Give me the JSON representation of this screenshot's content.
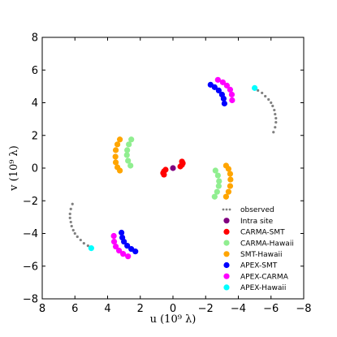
{
  "chart_data": {
    "type": "scatter",
    "xlabel": "u (10⁹ λ)",
    "ylabel": "v (10⁹ λ)",
    "xlim": [
      8,
      -8
    ],
    "ylim": [
      -8,
      8
    ],
    "xticks": [
      "8",
      "6",
      "4",
      "2",
      "0",
      "−2",
      "−4",
      "−6",
      "−8"
    ],
    "yticks": [
      "8",
      "6",
      "4",
      "2",
      "0",
      "−2",
      "−4",
      "−6",
      "−8"
    ],
    "grid": false,
    "legend_position": "bottom-right",
    "series": [
      {
        "name": "observed",
        "color": "#808080",
        "marker": "small-dot",
        "points": [
          [
            -5.2,
            4.75
          ],
          [
            -5.45,
            4.6
          ],
          [
            -5.65,
            4.4
          ],
          [
            -5.85,
            4.2
          ],
          [
            -6.0,
            4.0
          ],
          [
            -6.1,
            3.8
          ],
          [
            -6.2,
            3.55
          ],
          [
            -6.25,
            3.3
          ],
          [
            -6.3,
            3.05
          ],
          [
            -6.3,
            2.8
          ],
          [
            -6.25,
            2.5
          ],
          [
            -6.15,
            2.2
          ],
          [
            5.2,
            -4.75
          ],
          [
            5.45,
            -4.6
          ],
          [
            5.65,
            -4.4
          ],
          [
            5.85,
            -4.2
          ],
          [
            6.0,
            -4.0
          ],
          [
            6.1,
            -3.8
          ],
          [
            6.2,
            -3.55
          ],
          [
            6.25,
            -3.3
          ],
          [
            6.3,
            -3.05
          ],
          [
            6.3,
            -2.8
          ],
          [
            6.25,
            -2.5
          ],
          [
            6.15,
            -2.2
          ]
        ]
      },
      {
        "name": "Intra site",
        "color": "#800080",
        "marker": "dot",
        "points": [
          [
            0.0,
            0.0
          ]
        ]
      },
      {
        "name": "CARMA-SMT",
        "color": "#ff0000",
        "marker": "dot",
        "points": [
          [
            -0.45,
            0.1
          ],
          [
            -0.55,
            0.2
          ],
          [
            -0.6,
            0.3
          ],
          [
            -0.55,
            0.4
          ],
          [
            0.45,
            -0.1
          ],
          [
            0.55,
            -0.2
          ],
          [
            0.6,
            -0.3
          ],
          [
            0.55,
            -0.4
          ]
        ]
      },
      {
        "name": "CARMA-Hawaii",
        "color": "#90ee90",
        "marker": "dot",
        "points": [
          [
            2.55,
            1.75
          ],
          [
            2.7,
            1.45
          ],
          [
            2.8,
            1.1
          ],
          [
            2.82,
            0.8
          ],
          [
            2.75,
            0.45
          ],
          [
            2.6,
            0.15
          ],
          [
            -2.55,
            -1.75
          ],
          [
            -2.7,
            -1.45
          ],
          [
            -2.8,
            -1.1
          ],
          [
            -2.82,
            -0.8
          ],
          [
            -2.75,
            -0.45
          ],
          [
            -2.6,
            -0.15
          ]
        ]
      },
      {
        "name": "SMT-Hawaii",
        "color": "#ffa500",
        "marker": "dot",
        "points": [
          [
            3.25,
            1.75
          ],
          [
            3.4,
            1.45
          ],
          [
            3.5,
            1.1
          ],
          [
            3.52,
            0.7
          ],
          [
            3.5,
            0.35
          ],
          [
            3.4,
            0.05
          ],
          [
            3.25,
            -0.15
          ],
          [
            -3.25,
            -1.75
          ],
          [
            -3.4,
            -1.45
          ],
          [
            -3.5,
            -1.1
          ],
          [
            -3.52,
            -0.7
          ],
          [
            -3.5,
            -0.35
          ],
          [
            -3.4,
            -0.05
          ],
          [
            -3.25,
            0.15
          ]
        ]
      },
      {
        "name": "APEX-SMT",
        "color": "#0000ff",
        "marker": "dot",
        "points": [
          [
            -2.3,
            5.1
          ],
          [
            -2.55,
            4.95
          ],
          [
            -2.8,
            4.75
          ],
          [
            -3.0,
            4.5
          ],
          [
            -3.1,
            4.25
          ],
          [
            -3.15,
            3.95
          ],
          [
            2.3,
            -5.1
          ],
          [
            2.55,
            -4.95
          ],
          [
            2.8,
            -4.75
          ],
          [
            3.0,
            -4.5
          ],
          [
            3.1,
            -4.25
          ],
          [
            3.15,
            -3.95
          ]
        ]
      },
      {
        "name": "APEX-CARMA",
        "color": "#ff00ff",
        "marker": "dot",
        "points": [
          [
            -2.75,
            5.4
          ],
          [
            -3.05,
            5.25
          ],
          [
            -3.3,
            5.05
          ],
          [
            -3.5,
            4.8
          ],
          [
            -3.6,
            4.5
          ],
          [
            -3.62,
            4.15
          ],
          [
            2.75,
            -5.4
          ],
          [
            3.05,
            -5.25
          ],
          [
            3.3,
            -5.05
          ],
          [
            3.5,
            -4.8
          ],
          [
            3.6,
            -4.5
          ],
          [
            3.62,
            -4.15
          ]
        ]
      },
      {
        "name": "APEX-Hawaii",
        "color": "#00ffff",
        "marker": "dot",
        "points": [
          [
            -5.0,
            4.9
          ],
          [
            5.0,
            -4.9
          ]
        ]
      }
    ]
  }
}
